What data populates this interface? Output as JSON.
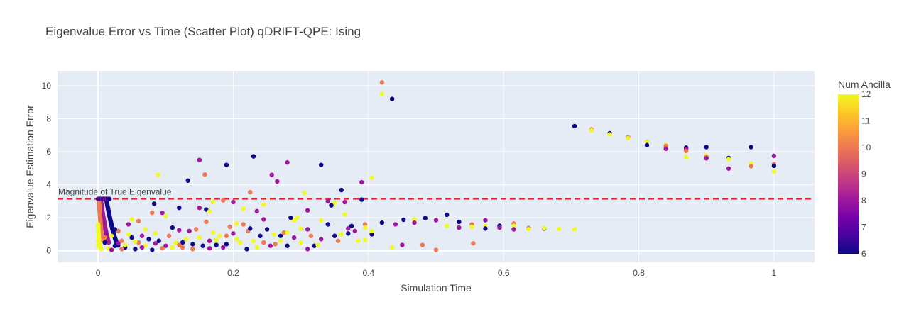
{
  "chart_data": {
    "type": "scatter",
    "title": "Eigenvalue Error vs Time (Scatter Plot) qDRIFT-QPE: Ising",
    "xlabel": "Simulation Time",
    "ylabel": "Eigenvalue Estimation Error",
    "xlim": [
      -0.06,
      1.06
    ],
    "ylim": [
      -0.7,
      10.9
    ],
    "xticks": [
      0,
      0.2,
      0.4,
      0.6,
      0.8,
      1
    ],
    "xtick_labels": [
      "0",
      "0.2",
      "0.4",
      "0.6",
      "0.8",
      "1"
    ],
    "yticks": [
      0,
      2,
      4,
      6,
      8,
      10
    ],
    "ytick_labels": [
      "0",
      "2",
      "4",
      "6",
      "8",
      "10"
    ],
    "grid": true,
    "reference_line": {
      "y": 3.14,
      "label": "Magnitude of True Eigenvalue",
      "color": "#ee2222",
      "style": "dashed"
    },
    "colorbar": {
      "title": "Num Ancilla",
      "min": 6,
      "max": 12,
      "ticks": [
        6,
        7,
        8,
        9,
        10,
        11,
        12
      ],
      "tick_labels": [
        "6",
        "7",
        "8",
        "9",
        "10",
        "11",
        "12"
      ],
      "colorscale": [
        "#0d0887",
        "#46039f",
        "#7201a8",
        "#9c179e",
        "#bd3786",
        "#d8576b",
        "#ed7953",
        "#fb9f3a",
        "#fdca26",
        "#f0f921"
      ]
    },
    "points": [
      [
        0.705,
        7.55,
        6
      ],
      [
        0.73,
        7.35,
        10
      ],
      [
        0.73,
        7.3,
        12
      ],
      [
        0.757,
        7.12,
        6
      ],
      [
        0.757,
        7.05,
        12
      ],
      [
        0.784,
        6.88,
        10
      ],
      [
        0.784,
        6.82,
        12
      ],
      [
        0.812,
        6.6,
        10
      ],
      [
        0.812,
        6.58,
        12
      ],
      [
        0.812,
        6.4,
        6
      ],
      [
        0.84,
        6.42,
        12
      ],
      [
        0.84,
        6.35,
        10
      ],
      [
        0.84,
        6.18,
        8
      ],
      [
        0.87,
        6.25,
        6
      ],
      [
        0.87,
        6.15,
        8
      ],
      [
        0.87,
        6.05,
        10
      ],
      [
        0.87,
        5.68,
        12
      ],
      [
        0.9,
        6.28,
        6
      ],
      [
        0.9,
        5.78,
        12
      ],
      [
        0.9,
        5.68,
        10
      ],
      [
        0.9,
        5.6,
        8
      ],
      [
        0.933,
        5.62,
        6
      ],
      [
        0.933,
        5.55,
        12
      ],
      [
        0.933,
        4.98,
        8
      ],
      [
        0.966,
        6.28,
        6
      ],
      [
        0.966,
        5.28,
        12
      ],
      [
        0.966,
        5.12,
        10
      ],
      [
        1.0,
        5.75,
        8
      ],
      [
        1.0,
        5.25,
        10
      ],
      [
        1.0,
        5.15,
        6
      ],
      [
        1.0,
        4.8,
        12
      ],
      [
        0.42,
        10.2,
        10
      ],
      [
        0.42,
        9.5,
        12
      ],
      [
        0.435,
        9.2,
        6
      ],
      [
        0.089,
        4.6,
        12
      ],
      [
        0.133,
        4.25,
        6
      ],
      [
        0.15,
        5.5,
        8
      ],
      [
        0.158,
        4.62,
        10
      ],
      [
        0.19,
        5.2,
        6
      ],
      [
        0.23,
        5.72,
        6
      ],
      [
        0.28,
        5.35,
        8
      ],
      [
        0.33,
        5.2,
        6
      ],
      [
        0.257,
        4.6,
        8
      ],
      [
        0.265,
        4.2,
        8
      ],
      [
        0.405,
        4.42,
        12
      ],
      [
        0.39,
        4.15,
        8
      ],
      [
        0.305,
        3.5,
        12
      ],
      [
        0.36,
        3.68,
        6
      ],
      [
        0.225,
        3.55,
        10
      ],
      [
        0.34,
        3.0,
        8
      ],
      [
        0.365,
        2.95,
        8
      ],
      [
        0.35,
        2.9,
        12
      ],
      [
        0.39,
        3.1,
        6
      ],
      [
        0.42,
        1.7,
        6
      ],
      [
        0.44,
        1.6,
        8
      ],
      [
        0.452,
        1.88,
        6
      ],
      [
        0.468,
        1.9,
        12
      ],
      [
        0.468,
        1.7,
        8
      ],
      [
        0.484,
        1.98,
        6
      ],
      [
        0.5,
        1.85,
        8
      ],
      [
        0.516,
        2.18,
        6
      ],
      [
        0.516,
        1.5,
        12
      ],
      [
        0.534,
        1.75,
        6
      ],
      [
        0.534,
        1.4,
        8
      ],
      [
        0.553,
        1.6,
        10
      ],
      [
        0.553,
        1.45,
        12
      ],
      [
        0.573,
        1.85,
        8
      ],
      [
        0.573,
        1.5,
        12
      ],
      [
        0.573,
        1.35,
        6
      ],
      [
        0.594,
        1.52,
        6
      ],
      [
        0.594,
        1.4,
        8
      ],
      [
        0.615,
        1.65,
        10
      ],
      [
        0.615,
        1.5,
        12
      ],
      [
        0.615,
        1.3,
        8
      ],
      [
        0.637,
        1.38,
        10
      ],
      [
        0.637,
        1.3,
        12
      ],
      [
        0.66,
        1.35,
        6
      ],
      [
        0.66,
        1.38,
        12
      ],
      [
        0.682,
        1.32,
        12
      ],
      [
        0.705,
        1.3,
        12
      ],
      [
        0.48,
        0.35,
        10
      ],
      [
        0.5,
        0.05,
        10
      ],
      [
        0.555,
        0.45,
        10
      ],
      [
        0.45,
        0.35,
        8
      ],
      [
        0.435,
        0.2,
        12
      ],
      [
        0.405,
        1.0,
        6
      ],
      [
        0.405,
        1.2,
        12
      ],
      [
        0.395,
        0.65,
        12
      ],
      [
        0.38,
        1.2,
        8
      ],
      [
        0.375,
        1.5,
        6
      ],
      [
        0.365,
        2.2,
        12
      ],
      [
        0.37,
        1.35,
        8
      ],
      [
        0.395,
        1.6,
        10
      ],
      [
        0.35,
        0.9,
        6
      ],
      [
        0.33,
        0.7,
        8
      ],
      [
        0.32,
        0.3,
        6
      ],
      [
        0.31,
        0.1,
        8
      ],
      [
        0.3,
        1.35,
        12
      ],
      [
        0.29,
        1.85,
        12
      ],
      [
        0.285,
        2.0,
        6
      ],
      [
        0.27,
        0.9,
        6
      ],
      [
        0.262,
        0.4,
        10
      ],
      [
        0.255,
        0.3,
        8
      ],
      [
        0.245,
        1.9,
        8
      ],
      [
        0.24,
        0.9,
        6
      ],
      [
        0.235,
        2.4,
        8
      ],
      [
        0.222,
        1.2,
        10
      ],
      [
        0.21,
        0.5,
        12
      ],
      [
        0.2,
        1.05,
        8
      ],
      [
        0.19,
        0.4,
        6
      ],
      [
        0.2,
        2.95,
        8
      ],
      [
        0.185,
        3.05,
        10
      ],
      [
        0.17,
        2.95,
        12
      ],
      [
        0.16,
        2.5,
        6
      ],
      [
        0.15,
        2.6,
        8
      ],
      [
        0.165,
        2.4,
        12
      ],
      [
        0.12,
        2.6,
        6
      ],
      [
        0.1,
        2.1,
        12
      ],
      [
        0.095,
        2.3,
        8
      ],
      [
        0.083,
        2.85,
        6
      ],
      [
        0.08,
        2.3,
        10
      ],
      [
        0.06,
        1.8,
        10
      ],
      [
        0.05,
        1.9,
        12
      ],
      [
        0.045,
        1.6,
        8
      ],
      [
        0.03,
        1.2,
        10
      ],
      [
        0.02,
        0.9,
        12
      ],
      [
        0.03,
        0.45,
        8
      ],
      [
        0.04,
        0.2,
        6
      ],
      [
        0.05,
        0.8,
        6
      ],
      [
        0.06,
        0.5,
        10
      ],
      [
        0.065,
        0.9,
        8
      ],
      [
        0.07,
        1.3,
        12
      ],
      [
        0.075,
        0.7,
        6
      ],
      [
        0.085,
        1.05,
        12
      ],
      [
        0.09,
        0.6,
        6
      ],
      [
        0.1,
        0.3,
        8
      ],
      [
        0.105,
        0.9,
        10
      ],
      [
        0.11,
        1.4,
        6
      ],
      [
        0.115,
        0.5,
        12
      ],
      [
        0.12,
        1.25,
        8
      ],
      [
        0.125,
        0.2,
        10
      ],
      [
        0.13,
        0.7,
        12
      ],
      [
        0.135,
        1.2,
        8
      ],
      [
        0.14,
        0.4,
        6
      ],
      [
        0.145,
        1.3,
        10
      ],
      [
        0.15,
        0.8,
        12
      ],
      [
        0.155,
        0.3,
        6
      ],
      [
        0.16,
        1.75,
        10
      ],
      [
        0.165,
        0.6,
        8
      ],
      [
        0.17,
        1.1,
        12
      ],
      [
        0.175,
        0.35,
        6
      ],
      [
        0.18,
        0.9,
        12
      ],
      [
        0.185,
        0.2,
        8
      ],
      [
        0.195,
        1.45,
        10
      ],
      [
        0.205,
        0.7,
        12
      ],
      [
        0.215,
        1.6,
        10
      ],
      [
        0.22,
        0.1,
        6
      ],
      [
        0.23,
        0.6,
        12
      ],
      [
        0.25,
        1.3,
        6
      ],
      [
        0.26,
        1.0,
        12
      ],
      [
        0.275,
        1.1,
        10
      ],
      [
        0.29,
        0.8,
        8
      ],
      [
        0.3,
        0.5,
        12
      ],
      [
        0.315,
        0.9,
        10
      ],
      [
        0.325,
        0.35,
        12
      ],
      [
        0.34,
        1.6,
        6
      ],
      [
        0.355,
        0.6,
        10
      ],
      [
        0.27,
        0.6,
        12
      ],
      [
        0.28,
        0.3,
        6
      ],
      [
        0.235,
        0.2,
        12
      ],
      [
        0.245,
        0.5,
        10
      ],
      [
        0.14,
        0.1,
        10
      ],
      [
        0.125,
        0.5,
        6
      ],
      [
        0.095,
        0.15,
        10
      ],
      [
        0.085,
        0.45,
        8
      ],
      [
        0.07,
        0.3,
        12
      ],
      [
        0.055,
        0.1,
        6
      ],
      [
        0.045,
        1.0,
        12
      ],
      [
        0.035,
        0.6,
        10
      ],
      [
        0.025,
        0.3,
        6
      ],
      [
        0.015,
        0.15,
        12
      ],
      [
        0.035,
        0.1,
        10
      ],
      [
        0.01,
        0.5,
        6
      ],
      [
        0.025,
        1.3,
        6
      ],
      [
        0.01,
        0.8,
        10
      ],
      [
        0.0,
        0.3,
        12
      ],
      [
        0.0,
        0.6,
        12
      ],
      [
        0.005,
        0.1,
        12
      ],
      [
        0.02,
        0.05,
        8
      ],
      [
        0.04,
        0.35,
        12
      ],
      [
        0.055,
        0.55,
        12
      ],
      [
        0.065,
        0.2,
        8
      ],
      [
        0.08,
        0.05,
        6
      ],
      [
        0.11,
        0.2,
        12
      ],
      [
        0.12,
        0.35,
        10
      ],
      [
        0.165,
        0.15,
        8
      ],
      [
        0.175,
        0.65,
        12
      ],
      [
        0.19,
        0.9,
        10
      ],
      [
        0.225,
        1.35,
        6
      ],
      [
        0.205,
        1.65,
        12
      ],
      [
        0.28,
        1.1,
        12
      ],
      [
        0.31,
        1.3,
        8
      ],
      [
        0.295,
        2.0,
        12
      ],
      [
        0.31,
        2.45,
        8
      ],
      [
        0.245,
        2.8,
        12
      ],
      [
        0.215,
        2.55,
        12
      ],
      [
        0.345,
        2.75,
        6
      ],
      [
        0.36,
        1.0,
        12
      ],
      [
        0.33,
        1.85,
        12
      ],
      [
        0.37,
        1.05,
        6
      ],
      [
        0.385,
        0.6,
        12
      ],
      [
        0.395,
        1.4,
        12
      ]
    ],
    "curves": [
      {
        "z": 6,
        "x": [
          0.012,
          0.014,
          0.016,
          0.018,
          0.02,
          0.022,
          0.024,
          0.026,
          0.028,
          0.03
        ],
        "y": [
          3.14,
          2.7,
          2.3,
          1.9,
          1.55,
          1.2,
          0.9,
          0.65,
          0.45,
          0.3
        ]
      },
      {
        "z": 8,
        "x": [
          0.004,
          0.006,
          0.008,
          0.01,
          0.012,
          0.014,
          0.016
        ],
        "y": [
          3.1,
          2.5,
          2.0,
          1.5,
          1.1,
          0.75,
          0.45
        ]
      },
      {
        "z": 10,
        "x": [
          0.001,
          0.002,
          0.003,
          0.004,
          0.005,
          0.006
        ],
        "y": [
          3.14,
          2.6,
          2.0,
          1.5,
          1.0,
          0.6
        ]
      },
      {
        "z": 12,
        "x": [
          0.0,
          0.0005,
          0.001,
          0.0015,
          0.002
        ],
        "y": [
          1.6,
          1.2,
          0.9,
          0.5,
          0.2
        ]
      }
    ]
  }
}
